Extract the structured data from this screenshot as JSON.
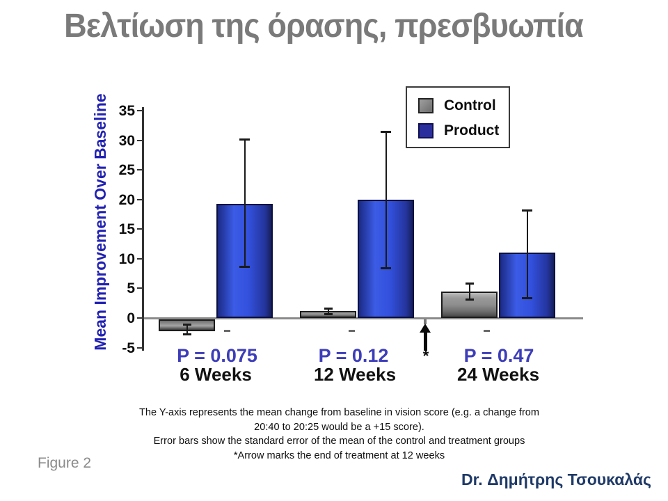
{
  "slide": {
    "title": "Βελτίωση της όρασης, πρεσβυωπία"
  },
  "chart_data": {
    "type": "bar",
    "ylabel": "Mean Improvement Over Baseline",
    "ylim": [
      -5,
      35
    ],
    "ytick_step": 5,
    "grid": false,
    "categories": [
      "6 Weeks",
      "12 Weeks",
      "24 Weeks"
    ],
    "series": [
      {
        "name": "Control",
        "color": "#8f8f8f",
        "values": [
          -2.0,
          1.2,
          4.5
        ],
        "error_low": [
          -2.7,
          0.7,
          3.2
        ],
        "error_high": [
          -1.1,
          1.7,
          5.9
        ]
      },
      {
        "name": "Product",
        "color": "#2b49d6",
        "values": [
          19.3,
          20.0,
          11.0
        ],
        "error_low": [
          8.7,
          8.5,
          3.4
        ],
        "error_high": [
          30.2,
          31.5,
          18.2
        ]
      }
    ],
    "p_values": [
      "P = 0.075",
      "P = 0.12",
      "P = 0.47"
    ],
    "legend_position": "top-right",
    "annotation": {
      "symbol": "*"
    }
  },
  "caption": {
    "lines": [
      "The Y-axis represents the mean change from baseline in vision score (e.g. a change from",
      "20:40 to 20:25 would be a +15 score).",
      "Error bars show the standard error of the mean of the control and treatment groups",
      "*Arrow marks the end of treatment at 12 weeks"
    ]
  },
  "footer": {
    "figure_label": "Figure 2",
    "credit": "Dr. Δημήτρης Τσουκαλάς"
  },
  "colors": {
    "title": "#7a7a7a",
    "axis_label": "#2121b3",
    "p_value": "#3d3dba",
    "credit": "#1f3a68",
    "bar_control": "#8f8f8f",
    "bar_product": "#2b49d6"
  }
}
